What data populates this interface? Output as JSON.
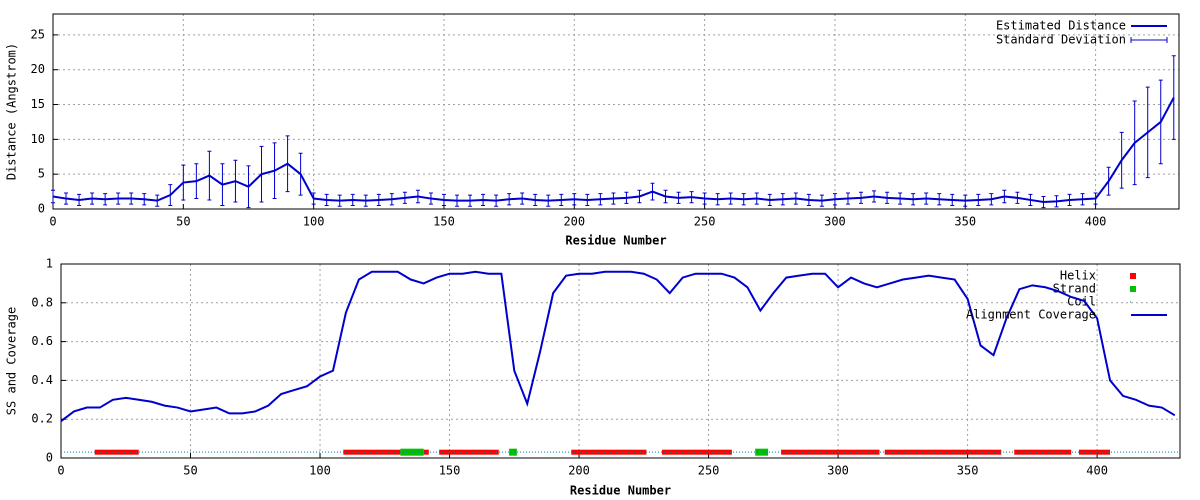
{
  "chart_data": [
    {
      "type": "line",
      "x_label": "Residue Number",
      "y_label": "Distance (Angstrom)",
      "x": [
        0,
        5,
        10,
        15,
        20,
        25,
        30,
        35,
        40,
        45,
        50,
        55,
        60,
        65,
        70,
        75,
        80,
        85,
        90,
        95,
        100,
        105,
        110,
        115,
        120,
        125,
        130,
        135,
        140,
        145,
        150,
        155,
        160,
        165,
        170,
        175,
        180,
        185,
        190,
        195,
        200,
        205,
        210,
        215,
        220,
        225,
        230,
        235,
        240,
        245,
        250,
        255,
        260,
        265,
        270,
        275,
        280,
        285,
        290,
        295,
        300,
        305,
        310,
        315,
        320,
        325,
        330,
        335,
        340,
        345,
        350,
        355,
        360,
        365,
        370,
        375,
        380,
        385,
        390,
        395,
        400,
        405,
        410,
        415,
        420,
        425,
        430
      ],
      "series": [
        {
          "name": "Estimated Distance",
          "color": "#0000cc",
          "error_name": "Standard Deviation",
          "values": [
            1.8,
            1.5,
            1.3,
            1.5,
            1.4,
            1.5,
            1.5,
            1.4,
            1.2,
            2.0,
            3.8,
            4.0,
            4.8,
            3.5,
            4.0,
            3.2,
            5.0,
            5.5,
            6.5,
            5.0,
            1.5,
            1.3,
            1.2,
            1.3,
            1.2,
            1.3,
            1.4,
            1.6,
            1.8,
            1.5,
            1.3,
            1.2,
            1.2,
            1.3,
            1.2,
            1.4,
            1.5,
            1.3,
            1.2,
            1.3,
            1.4,
            1.3,
            1.4,
            1.5,
            1.6,
            1.8,
            2.5,
            1.8,
            1.6,
            1.7,
            1.5,
            1.4,
            1.5,
            1.4,
            1.5,
            1.3,
            1.4,
            1.5,
            1.3,
            1.2,
            1.4,
            1.5,
            1.6,
            1.8,
            1.6,
            1.5,
            1.4,
            1.5,
            1.4,
            1.3,
            1.2,
            1.3,
            1.4,
            1.8,
            1.6,
            1.3,
            1.0,
            1.1,
            1.3,
            1.4,
            1.5,
            4.0,
            7.0,
            9.5,
            11.0,
            12.5,
            16.0
          ],
          "errors": [
            0.9,
            0.8,
            0.8,
            0.8,
            0.8,
            0.8,
            0.8,
            0.8,
            0.8,
            1.5,
            2.5,
            2.5,
            3.5,
            3.0,
            3.0,
            3.0,
            4.0,
            4.0,
            4.0,
            3.0,
            0.8,
            0.8,
            0.8,
            0.8,
            0.8,
            0.8,
            0.8,
            0.8,
            0.9,
            0.8,
            0.8,
            0.8,
            0.8,
            0.8,
            0.8,
            0.8,
            0.8,
            0.8,
            0.8,
            0.8,
            0.8,
            0.8,
            0.8,
            0.8,
            0.8,
            0.9,
            1.2,
            0.9,
            0.8,
            0.8,
            0.8,
            0.8,
            0.8,
            0.8,
            0.8,
            0.8,
            0.8,
            0.8,
            0.8,
            0.8,
            0.8,
            0.8,
            0.8,
            0.8,
            0.8,
            0.8,
            0.8,
            0.8,
            0.8,
            0.8,
            0.8,
            0.8,
            0.8,
            0.9,
            0.8,
            0.8,
            0.8,
            0.8,
            0.8,
            0.8,
            0.8,
            2.0,
            4.0,
            6.0,
            6.5,
            6.0,
            6.0
          ]
        }
      ],
      "xlim": [
        0,
        432
      ],
      "ylim": [
        0,
        28
      ],
      "xticks": [
        0,
        50,
        100,
        150,
        200,
        250,
        300,
        350,
        400
      ],
      "yticks": [
        0,
        5,
        10,
        15,
        20,
        25
      ],
      "grid": true
    },
    {
      "type": "line",
      "x_label": "Residue Number",
      "y_label": "SS and Coverage",
      "x": [
        0,
        5,
        10,
        15,
        20,
        25,
        30,
        35,
        40,
        45,
        50,
        55,
        60,
        65,
        70,
        75,
        80,
        85,
        90,
        95,
        100,
        105,
        110,
        115,
        120,
        125,
        130,
        135,
        140,
        145,
        150,
        155,
        160,
        165,
        170,
        175,
        180,
        185,
        190,
        195,
        200,
        205,
        210,
        215,
        220,
        225,
        230,
        235,
        240,
        245,
        250,
        255,
        260,
        265,
        270,
        275,
        280,
        285,
        290,
        295,
        300,
        305,
        310,
        315,
        320,
        325,
        330,
        335,
        340,
        345,
        350,
        355,
        360,
        365,
        370,
        375,
        380,
        385,
        390,
        395,
        400,
        405,
        410,
        415,
        420,
        425,
        430
      ],
      "ss": [
        {
          "name": "Helix",
          "color": "#ff0000",
          "y": 0.03,
          "ranges": [
            [
              13,
              30
            ],
            [
              109,
              131
            ],
            [
              140,
              142
            ],
            [
              146,
              169
            ],
            [
              197,
              226
            ],
            [
              232,
              259
            ],
            [
              278,
              316
            ],
            [
              318,
              363
            ],
            [
              368,
              390
            ],
            [
              393,
              405
            ]
          ]
        },
        {
          "name": "Strand",
          "color": "#00c000",
          "y": 0.03,
          "ranges": [
            [
              131,
              140
            ],
            [
              173,
              176
            ],
            [
              268,
              273
            ]
          ]
        },
        {
          "name": "Coil",
          "color": "#0080a0",
          "y": 0.03,
          "ranges": [
            [
              0,
              432
            ]
          ]
        }
      ],
      "series": [
        {
          "name": "Alignment Coverage",
          "color": "#0000cc",
          "values": [
            0.19,
            0.24,
            0.26,
            0.26,
            0.3,
            0.31,
            0.3,
            0.29,
            0.27,
            0.26,
            0.24,
            0.25,
            0.26,
            0.23,
            0.23,
            0.24,
            0.27,
            0.33,
            0.35,
            0.37,
            0.42,
            0.45,
            0.75,
            0.92,
            0.96,
            0.96,
            0.96,
            0.92,
            0.9,
            0.93,
            0.95,
            0.95,
            0.96,
            0.95,
            0.95,
            0.45,
            0.28,
            0.55,
            0.85,
            0.94,
            0.95,
            0.95,
            0.96,
            0.96,
            0.96,
            0.95,
            0.92,
            0.85,
            0.93,
            0.95,
            0.95,
            0.95,
            0.93,
            0.88,
            0.76,
            0.85,
            0.93,
            0.94,
            0.95,
            0.95,
            0.88,
            0.93,
            0.9,
            0.88,
            0.9,
            0.92,
            0.93,
            0.94,
            0.93,
            0.92,
            0.82,
            0.58,
            0.53,
            0.72,
            0.87,
            0.89,
            0.88,
            0.86,
            0.83,
            0.81,
            0.72,
            0.4,
            0.32,
            0.3,
            0.27,
            0.26,
            0.22
          ]
        }
      ],
      "xlim": [
        0,
        432
      ],
      "ylim": [
        0,
        1
      ],
      "xticks": [
        0,
        50,
        100,
        150,
        200,
        250,
        300,
        350,
        400
      ],
      "yticks": [
        0,
        0.2,
        0.4,
        0.6,
        0.8,
        1
      ],
      "grid": true
    }
  ]
}
